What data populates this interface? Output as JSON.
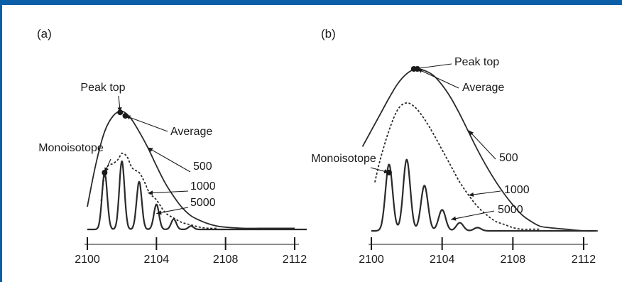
{
  "colors": {
    "accent": "#0a5fa8",
    "ink": "#1a1a1a"
  },
  "chart_data": [
    {
      "type": "line",
      "panel_label": "(a)",
      "xlim": [
        2100,
        2112
      ],
      "x_ticks": [
        "2100",
        "2104",
        "2108",
        "2112"
      ],
      "series": [
        {
          "name": "500",
          "style": "solid",
          "x": [
            2100.0,
            2100.5,
            2101.0,
            2101.5,
            2102.0,
            2102.5,
            2103.0,
            2103.5,
            2104.0,
            2104.5,
            2105.0,
            2105.5,
            2106.0,
            2106.5,
            2107.0,
            2107.5,
            2108.0,
            2109.0,
            2110.0,
            2111.0,
            2112.0
          ],
          "y": [
            0.2,
            0.58,
            0.86,
            1.0,
            1.04,
            0.98,
            0.86,
            0.72,
            0.56,
            0.41,
            0.29,
            0.19,
            0.12,
            0.08,
            0.05,
            0.03,
            0.02,
            0.01,
            0.01,
            0.01,
            0.01
          ]
        },
        {
          "name": "1000",
          "style": "dotted",
          "x": [
            2100.8,
            2101.0,
            2101.2,
            2101.5,
            2101.8,
            2102.0,
            2102.3,
            2102.6,
            2103.0,
            2103.3,
            2103.6,
            2104.0,
            2104.5,
            2105.0,
            2105.5,
            2106.0,
            2106.5,
            2107.0,
            2107.5
          ],
          "y": [
            0.25,
            0.48,
            0.56,
            0.58,
            0.62,
            0.67,
            0.64,
            0.54,
            0.5,
            0.42,
            0.32,
            0.26,
            0.15,
            0.1,
            0.06,
            0.04,
            0.02,
            0.01,
            0.01
          ]
        },
        {
          "name": "5000",
          "style": "solid-thin",
          "peak_width": 0.15,
          "peaks": [
            [
              2101.0,
              0.5
            ],
            [
              2102.0,
              0.6
            ],
            [
              2103.0,
              0.42
            ],
            [
              2104.0,
              0.22
            ],
            [
              2105.0,
              0.09
            ],
            [
              2106.0,
              0.03
            ]
          ]
        }
      ],
      "annotations": [
        {
          "text": "Peak top",
          "point": [
            2101.9,
            1.03
          ]
        },
        {
          "text": "Average",
          "point": [
            2102.2,
            1.0
          ]
        },
        {
          "text": "Monoisotope",
          "point": [
            2101.0,
            0.5
          ]
        },
        {
          "text": "500",
          "point": [
            2103.5,
            0.72
          ]
        },
        {
          "text": "1000",
          "point": [
            2103.5,
            0.32
          ]
        },
        {
          "text": "5000",
          "point": [
            2104.0,
            0.14
          ]
        }
      ]
    },
    {
      "type": "line",
      "panel_label": "(b)",
      "xlim": [
        2100,
        2112
      ],
      "x_ticks": [
        "2100",
        "2104",
        "2108",
        "2112"
      ],
      "series": [
        {
          "name": "500",
          "style": "solid",
          "x": [
            2099.5,
            2100.0,
            2100.5,
            2101.0,
            2101.5,
            2102.0,
            2102.5,
            2103.0,
            2103.5,
            2104.0,
            2104.5,
            2105.0,
            2105.5,
            2106.0,
            2106.5,
            2107.0,
            2107.5,
            2108.0,
            2108.5,
            2109.0,
            2109.5,
            2110.0,
            2111.0,
            2112.0,
            2112.8
          ],
          "y": [
            0.52,
            0.62,
            0.72,
            0.82,
            0.91,
            0.97,
            1.0,
            0.99,
            0.96,
            0.9,
            0.82,
            0.72,
            0.61,
            0.5,
            0.4,
            0.31,
            0.23,
            0.16,
            0.1,
            0.06,
            0.03,
            0.02,
            0.01,
            0.0,
            0.0
          ]
        },
        {
          "name": "1000",
          "style": "dotted",
          "x": [
            2100.2,
            2100.5,
            2101.0,
            2101.5,
            2102.0,
            2102.5,
            2103.0,
            2103.5,
            2104.0,
            2104.5,
            2105.0,
            2105.5,
            2106.0,
            2106.5,
            2107.0,
            2107.5,
            2108.0,
            2108.5,
            2109.0,
            2109.5
          ],
          "y": [
            0.3,
            0.44,
            0.62,
            0.75,
            0.79,
            0.76,
            0.69,
            0.6,
            0.5,
            0.4,
            0.3,
            0.22,
            0.15,
            0.1,
            0.06,
            0.04,
            0.02,
            0.01,
            0.01,
            0.01
          ]
        },
        {
          "name": "5000",
          "style": "solid-thin",
          "peak_width": 0.2,
          "peaks": [
            [
              2101.0,
              0.41
            ],
            [
              2102.0,
              0.44
            ],
            [
              2103.0,
              0.28
            ],
            [
              2104.0,
              0.13
            ],
            [
              2105.0,
              0.05
            ],
            [
              2106.0,
              0.02
            ]
          ]
        }
      ],
      "annotations": [
        {
          "text": "Peak top",
          "point": [
            2102.4,
            1.0
          ]
        },
        {
          "text": "Average",
          "point": [
            2102.6,
            1.0
          ]
        },
        {
          "text": "Monoisotope",
          "point": [
            2101.0,
            0.36
          ]
        },
        {
          "text": "500",
          "point": [
            2105.5,
            0.62
          ]
        },
        {
          "text": "1000",
          "point": [
            2105.5,
            0.22
          ]
        },
        {
          "text": "5000",
          "point": [
            2104.5,
            0.07
          ]
        }
      ]
    }
  ]
}
